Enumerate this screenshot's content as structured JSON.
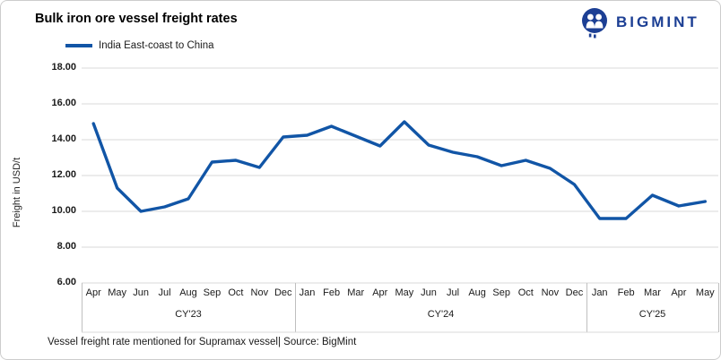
{
  "header": {
    "title": "Bulk iron ore vessel freight rates",
    "brand": {
      "name": "BIGMINT",
      "color": "#1c3f94"
    }
  },
  "legend": {
    "label": "India East-coast to China"
  },
  "footer": {
    "note": "Vessel freight rate mentioned for Supramax vessel| Source: BigMint"
  },
  "chart_data": {
    "type": "line",
    "title": "Bulk iron ore vessel freight rates",
    "ylabel": "Freight in USD/t",
    "xlabel": "",
    "ylim": [
      6,
      18
    ],
    "grid": true,
    "legend_position": "top-left",
    "line_color": "#1155a6",
    "gridline_color": "#d9d9d9",
    "tick_color": "#bfbfbf",
    "series_name": "India East-coast to China",
    "yticks": [
      {
        "label": "18.00",
        "value": 18
      },
      {
        "label": "16.00",
        "value": 16
      },
      {
        "label": "14.00",
        "value": 14
      },
      {
        "label": "12.00",
        "value": 12
      },
      {
        "label": "10.00",
        "value": 10
      },
      {
        "label": "8.00",
        "value": 8
      },
      {
        "label": "6.00",
        "value": 6
      }
    ],
    "groups": [
      {
        "year": "CY'23",
        "months": [
          "Apr",
          "May",
          "Jun",
          "Jul",
          "Aug",
          "Sep",
          "Oct",
          "Nov",
          "Dec"
        ],
        "values": [
          14.9,
          11.3,
          10.0,
          10.25,
          10.7,
          12.75,
          12.85,
          12.45,
          14.15
        ]
      },
      {
        "year": "CY'24",
        "months": [
          "Jan",
          "Feb",
          "Mar",
          "Apr",
          "May",
          "Jun",
          "Jul",
          "Aug",
          "Sep",
          "Oct",
          "Nov",
          "Dec"
        ],
        "values": [
          14.25,
          14.75,
          14.2,
          13.65,
          15.0,
          13.7,
          13.3,
          13.05,
          12.55,
          12.85,
          12.4,
          11.5
        ]
      },
      {
        "year": "CY'25",
        "months": [
          "Jan",
          "Feb",
          "Mar",
          "Apr",
          "May"
        ],
        "values": [
          9.6,
          9.6,
          10.9,
          10.3,
          10.55
        ]
      }
    ]
  }
}
